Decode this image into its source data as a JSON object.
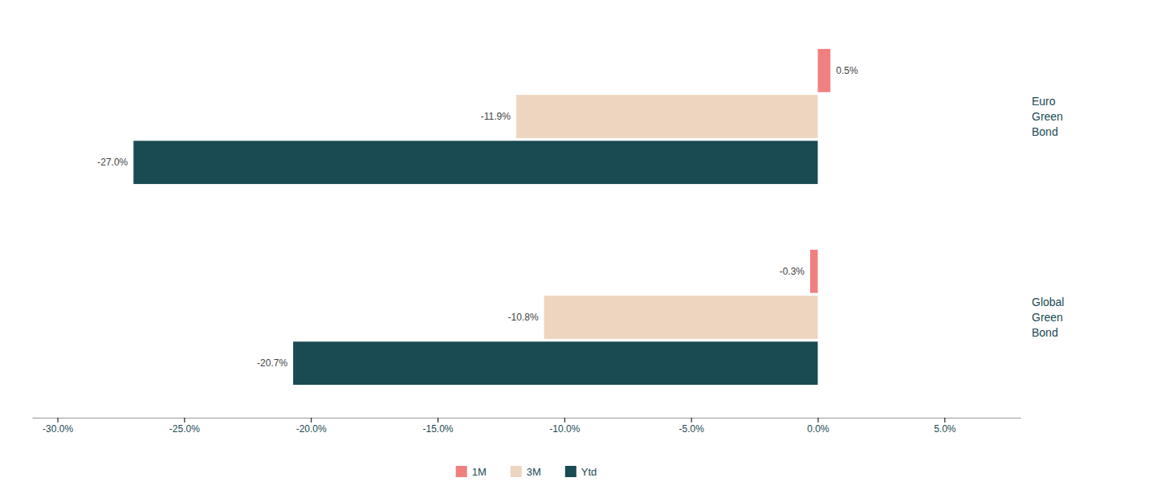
{
  "chart_data": {
    "type": "bar",
    "orientation": "horizontal",
    "categories": [
      "Euro\nGreen\nBond",
      "Global\nGreen\nBond"
    ],
    "series": [
      {
        "name": "1M",
        "color": "#F08080",
        "values": [
          0.5,
          -0.3
        ],
        "value_labels": [
          "0.5%",
          "-0.3%"
        ]
      },
      {
        "name": "3M",
        "color": "#EDD5C0",
        "values": [
          -11.9,
          -10.8
        ],
        "value_labels": [
          "-11.9%",
          "-10.8%"
        ]
      },
      {
        "name": "Ytd",
        "color": "#1A4A52",
        "values": [
          -27.0,
          -20.7
        ],
        "value_labels": [
          "-27.0%",
          "-20.7%"
        ]
      }
    ],
    "xlim": [
      -31,
      8
    ],
    "xticks": [
      {
        "value": -30,
        "label": "-30.0%"
      },
      {
        "value": -25,
        "label": "-25.0%"
      },
      {
        "value": -20,
        "label": "-20.0%"
      },
      {
        "value": -15,
        "label": "-15.0%"
      },
      {
        "value": -10,
        "label": "-10.0%"
      },
      {
        "value": -5,
        "label": "-5.0%"
      },
      {
        "value": 0,
        "label": "0.0%"
      },
      {
        "value": 5,
        "label": "5.0%"
      }
    ],
    "data_labels": true,
    "grid": false,
    "legend": "bottom"
  }
}
